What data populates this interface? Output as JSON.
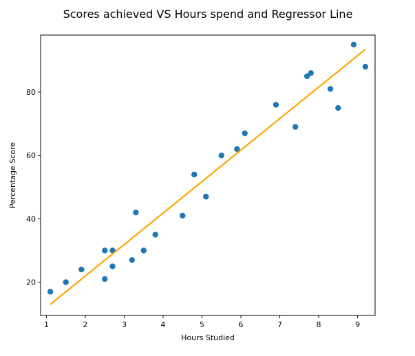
{
  "chart_data": {
    "type": "scatter",
    "title": "Scores achieved VS Hours spend and Regressor Line",
    "xlabel": "Hours Studied",
    "ylabel": "Percentage Score",
    "xlim": [
      0.85,
      9.45
    ],
    "ylim": [
      9.5,
      98
    ],
    "xticks": [
      1,
      2,
      3,
      4,
      5,
      6,
      7,
      8,
      9
    ],
    "yticks": [
      20,
      40,
      60,
      80
    ],
    "grid": false,
    "colors": {
      "points": "#1f77b4",
      "line": "#ffa500"
    },
    "series": [
      {
        "type": "scatter",
        "points": [
          [
            2.5,
            21
          ],
          [
            5.1,
            47
          ],
          [
            3.2,
            27
          ],
          [
            8.5,
            75
          ],
          [
            3.5,
            30
          ],
          [
            1.5,
            20
          ],
          [
            9.2,
            88
          ],
          [
            5.5,
            60
          ],
          [
            8.3,
            81
          ],
          [
            2.7,
            25
          ],
          [
            7.7,
            85
          ],
          [
            5.9,
            62
          ],
          [
            4.5,
            41
          ],
          [
            3.3,
            42
          ],
          [
            1.1,
            17
          ],
          [
            8.9,
            95
          ],
          [
            2.5,
            30
          ],
          [
            1.9,
            24
          ],
          [
            6.1,
            67
          ],
          [
            7.4,
            69
          ],
          [
            2.7,
            30
          ],
          [
            4.8,
            54
          ],
          [
            3.8,
            35
          ],
          [
            6.9,
            76
          ],
          [
            7.8,
            86
          ]
        ]
      },
      {
        "type": "line",
        "points": [
          [
            1.1,
            13
          ],
          [
            9.2,
            93.5
          ]
        ]
      }
    ]
  }
}
